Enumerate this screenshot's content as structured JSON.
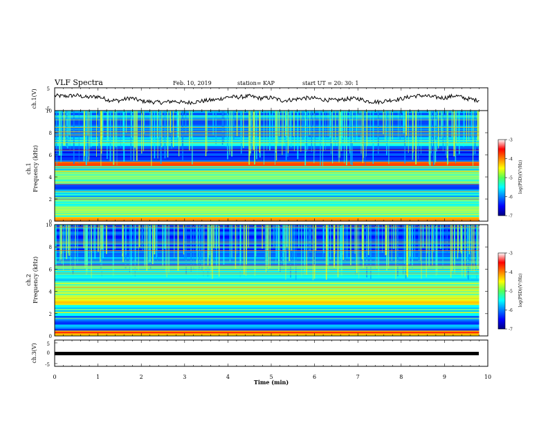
{
  "header": {
    "title": "VLF Spectra",
    "date": "Feb. 10, 2019",
    "station": "station= KAP",
    "start": "start  UT =   20: 30: 1"
  },
  "chart_data": [
    {
      "type": "line",
      "panel": "ch1-waveform",
      "ylabel": "ch.1(V)",
      "ylim": [
        -5,
        5
      ],
      "yticks": [
        "5",
        "-5"
      ],
      "xlim": [
        0,
        10
      ],
      "series": [
        {
          "x": [
            0,
            0.25,
            0.5,
            0.75,
            1.0,
            1.25,
            1.5,
            1.75,
            2.0,
            2.25,
            2.5,
            2.75,
            3.0,
            3.25,
            3.5,
            3.75,
            4.0,
            4.25,
            4.5,
            4.75,
            5.0,
            5.25,
            5.5,
            5.75,
            6.0,
            6.25,
            6.5,
            6.75,
            7.0,
            7.25,
            7.5,
            7.75,
            8.0,
            8.25,
            8.5,
            8.75,
            9.0,
            9.25,
            9.5,
            9.75
          ],
          "values": [
            1.5,
            1.3,
            1.7,
            0.8,
            1.2,
            -0.4,
            -0.6,
            0.6,
            -0.8,
            -1.2,
            -1.5,
            -0.8,
            -1.6,
            -1.2,
            -0.6,
            -0.2,
            1.0,
            0.9,
            1.3,
            0.4,
            0.7,
            -0.6,
            -0.2,
            0.5,
            0.4,
            -0.3,
            -0.5,
            0.1,
            0.3,
            -1.0,
            -1.2,
            -0.4,
            0.1,
            1.3,
            1.6,
            0.9,
            0.6,
            1.6,
            0.3,
            -0.4
          ]
        }
      ]
    },
    {
      "type": "heatmap",
      "panel": "ch1-spectrogram",
      "ylabel": "ch.1\nFrequency (kHz)",
      "ylim": [
        0,
        10
      ],
      "yticks": [
        "0",
        "2",
        "4",
        "6",
        "8",
        "10"
      ],
      "xlim": [
        0,
        10
      ],
      "band_profile": [
        {
          "from": 0.0,
          "to": 0.4,
          "level": -4.0
        },
        {
          "from": 0.4,
          "to": 1.2,
          "level": -5.0
        },
        {
          "from": 1.2,
          "to": 2.2,
          "level": -5.2
        },
        {
          "from": 2.2,
          "to": 2.8,
          "level": -5.6
        },
        {
          "from": 2.8,
          "to": 3.4,
          "level": -6.2
        },
        {
          "from": 3.4,
          "to": 4.6,
          "level": -5.0
        },
        {
          "from": 4.6,
          "to": 5.0,
          "level": -5.5
        },
        {
          "from": 5.0,
          "to": 5.4,
          "level": -4.0
        },
        {
          "from": 5.4,
          "to": 6.8,
          "level": -6.3
        },
        {
          "from": 6.8,
          "to": 7.6,
          "level": -5.6
        },
        {
          "from": 7.6,
          "to": 10.0,
          "level": -6.0
        }
      ],
      "colorbar": {
        "label": "log(PSD)(V²/Hz)",
        "ticks": [
          "-3",
          "-4",
          "-5",
          "-6",
          "-7"
        ],
        "range": [
          -7,
          -3
        ]
      }
    },
    {
      "type": "heatmap",
      "panel": "ch2-spectrogram",
      "ylabel": "ch.2\nFrequency (kHz)",
      "ylim": [
        0,
        10
      ],
      "yticks": [
        "0",
        "2",
        "4",
        "6",
        "8",
        "10"
      ],
      "xlim": [
        0,
        10
      ],
      "band_profile": [
        {
          "from": 0.0,
          "to": 0.5,
          "level": -4.0
        },
        {
          "from": 0.5,
          "to": 1.8,
          "level": -6.0
        },
        {
          "from": 1.8,
          "to": 2.8,
          "level": -5.4
        },
        {
          "from": 2.8,
          "to": 3.4,
          "level": -4.5
        },
        {
          "from": 3.4,
          "to": 4.8,
          "level": -5.0
        },
        {
          "from": 4.8,
          "to": 6.2,
          "level": -5.5
        },
        {
          "from": 6.2,
          "to": 7.2,
          "level": -6.0
        },
        {
          "from": 7.2,
          "to": 10.0,
          "level": -6.2
        }
      ],
      "colorbar": {
        "label": "log(PSD)(V²/Hz)",
        "ticks": [
          "-3",
          "-4",
          "-5",
          "-6",
          "-7"
        ],
        "range": [
          -7,
          -3
        ]
      }
    },
    {
      "type": "line",
      "panel": "ch3-waveform",
      "ylabel": "ch.3(V)",
      "ylim": [
        -5,
        5
      ],
      "yticks": [
        "5",
        "0",
        "-5"
      ],
      "xlim": [
        0,
        10
      ],
      "series": [
        {
          "x": [
            0,
            9.8
          ],
          "values": [
            0.1,
            0.1
          ]
        }
      ]
    }
  ],
  "xaxis": {
    "label": "Time (min)",
    "ticks": [
      "0",
      "1",
      "2",
      "3",
      "4",
      "5",
      "6",
      "7",
      "8",
      "9",
      "10"
    ],
    "range": [
      0,
      10
    ]
  }
}
